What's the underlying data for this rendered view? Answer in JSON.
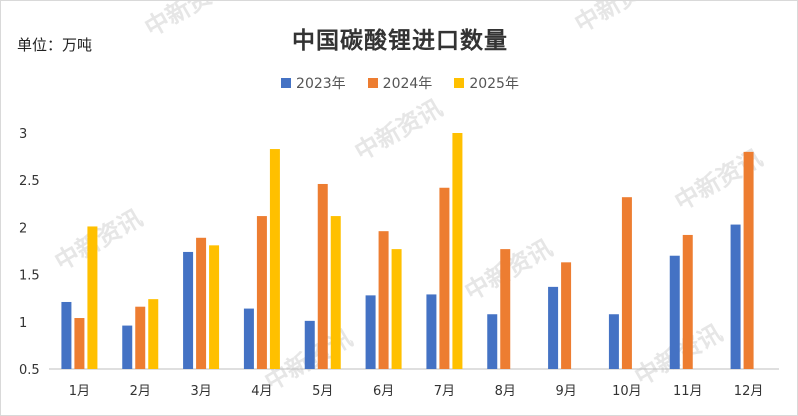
{
  "unit_label": "单位：万吨",
  "watermark_text": "中新资讯",
  "chart_data": {
    "type": "bar",
    "title": "中国碳酸锂进口数量",
    "xlabel": "",
    "ylabel": "",
    "categories": [
      "1月",
      "2月",
      "3月",
      "4月",
      "5月",
      "6月",
      "7月",
      "8月",
      "9月",
      "10月",
      "11月",
      "12月"
    ],
    "series": [
      {
        "name": "2023年",
        "color": "#4472c4",
        "values": [
          1.21,
          0.96,
          1.74,
          1.14,
          1.01,
          1.28,
          1.29,
          1.08,
          1.37,
          1.08,
          1.7,
          2.03
        ]
      },
      {
        "name": "2024年",
        "color": "#ed7d31",
        "values": [
          1.04,
          1.16,
          1.89,
          2.12,
          2.46,
          1.96,
          2.42,
          1.77,
          1.63,
          2.32,
          1.92,
          2.8
        ]
      },
      {
        "name": "2025年",
        "color": "#ffc000",
        "values": [
          2.01,
          1.24,
          1.81,
          2.83,
          2.12,
          1.77,
          3.0,
          null,
          null,
          null,
          null,
          null
        ]
      }
    ],
    "ylim": [
      0.5,
      3
    ],
    "yticks": [
      "0.5",
      "1",
      "1.5",
      "2",
      "2.5",
      "3"
    ],
    "grid": false,
    "legend_position": "top"
  }
}
